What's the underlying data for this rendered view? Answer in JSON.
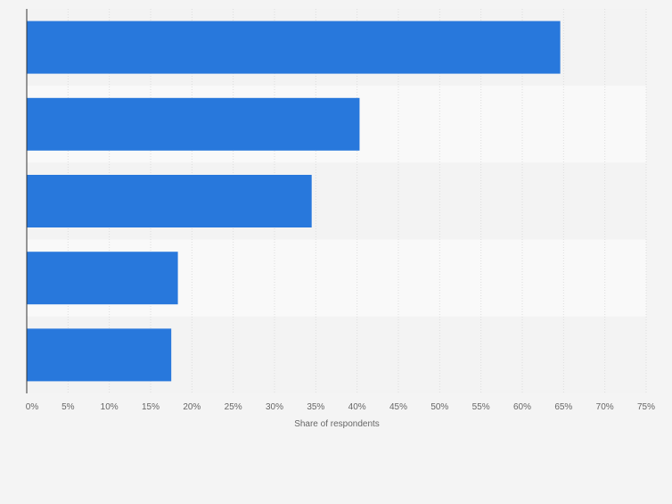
{
  "chart_data": {
    "type": "bar",
    "orientation": "horizontal",
    "categories": [
      "",
      "",
      "",
      "",
      ""
    ],
    "values": [
      64.6,
      40.3,
      34.5,
      18.3,
      17.5
    ],
    "xlabel": "Share of respondents",
    "ylabel": "",
    "xlim": [
      0,
      75
    ],
    "xticks": [
      "0%",
      "5%",
      "10%",
      "15%",
      "20%",
      "25%",
      "30%",
      "35%",
      "40%",
      "45%",
      "50%",
      "55%",
      "60%",
      "65%",
      "70%",
      "75%"
    ],
    "grid": true,
    "legend": "none",
    "colors": {
      "bar": "#2878dc",
      "band_dark": "#f3f3f3",
      "band_light": "#f9f9f9",
      "grid": "#dddddd",
      "axis": "#333333",
      "tick_text": "#666666"
    }
  }
}
